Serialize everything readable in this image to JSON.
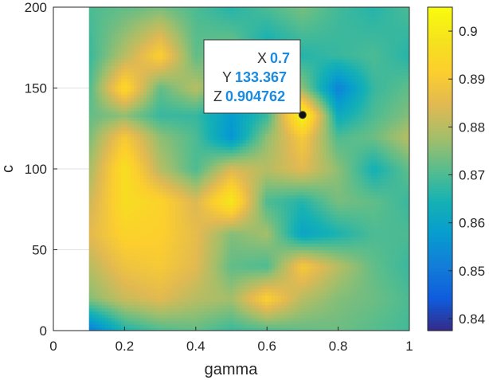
{
  "chart_data": {
    "type": "heatmap",
    "title": "",
    "xlabel": "gamma",
    "ylabel": "c",
    "xlim": [
      0,
      1
    ],
    "ylim": [
      0,
      200
    ],
    "xticks": [
      "0",
      "0.2",
      "0.4",
      "0.6",
      "0.8",
      "1"
    ],
    "yticks": [
      "0",
      "50",
      "100",
      "150",
      "200"
    ],
    "colorbar": {
      "colormap": "parula",
      "range": [
        0.8375,
        0.905
      ],
      "ticks": [
        "0.84",
        "0.85",
        "0.86",
        "0.87",
        "0.88",
        "0.89",
        "0.9"
      ]
    },
    "grid": true,
    "gamma": [
      0.1,
      0.2,
      0.3,
      0.4,
      0.5,
      0.6,
      0.7,
      0.8,
      0.9,
      1.0
    ],
    "c": [
      0,
      20,
      40,
      60,
      80,
      100,
      120,
      133.367,
      150,
      170,
      200
    ],
    "z": [
      [
        0.85,
        0.865,
        0.87,
        0.872,
        0.868,
        0.87,
        0.872,
        0.873,
        0.871,
        0.869
      ],
      [
        0.875,
        0.882,
        0.885,
        0.88,
        0.878,
        0.892,
        0.88,
        0.875,
        0.873,
        0.87
      ],
      [
        0.88,
        0.888,
        0.89,
        0.885,
        0.872,
        0.87,
        0.89,
        0.88,
        0.872,
        0.868
      ],
      [
        0.885,
        0.893,
        0.892,
        0.886,
        0.875,
        0.878,
        0.86,
        0.865,
        0.87,
        0.87
      ],
      [
        0.882,
        0.896,
        0.893,
        0.884,
        0.9,
        0.87,
        0.866,
        0.874,
        0.872,
        0.868
      ],
      [
        0.878,
        0.897,
        0.88,
        0.87,
        0.884,
        0.88,
        0.885,
        0.876,
        0.864,
        0.872
      ],
      [
        0.874,
        0.89,
        0.876,
        0.87,
        0.856,
        0.876,
        0.89,
        0.87,
        0.873,
        0.88
      ],
      [
        0.872,
        0.876,
        0.868,
        0.868,
        0.858,
        0.868,
        0.904762,
        0.862,
        0.87,
        0.875
      ],
      [
        0.87,
        0.895,
        0.872,
        0.88,
        0.87,
        0.873,
        0.876,
        0.852,
        0.868,
        0.872
      ],
      [
        0.868,
        0.88,
        0.892,
        0.872,
        0.875,
        0.862,
        0.866,
        0.868,
        0.87,
        0.866
      ],
      [
        0.87,
        0.872,
        0.874,
        0.87,
        0.866,
        0.87,
        0.874,
        0.869,
        0.866,
        0.87
      ]
    ],
    "datatip": {
      "x": 0.7,
      "y": 133.367,
      "z": 0.904762,
      "x_label": "X",
      "y_label": "Y",
      "z_label": "Z",
      "x_text": "0.7",
      "y_text": "133.367",
      "z_text": "0.904762"
    }
  }
}
